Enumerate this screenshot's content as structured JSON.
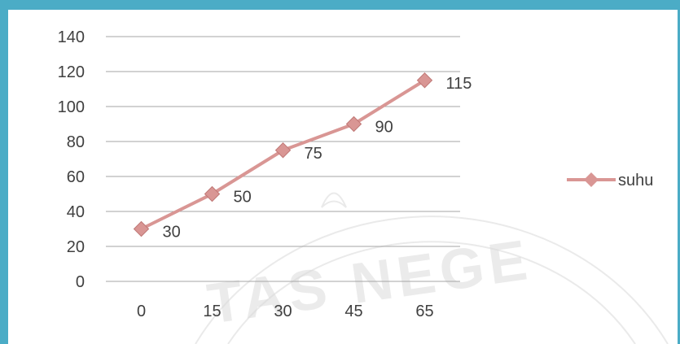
{
  "chart_data": {
    "type": "line",
    "categories": [
      "0",
      "15",
      "30",
      "45",
      "65"
    ],
    "series": [
      {
        "name": "suhu",
        "values": [
          30,
          50,
          75,
          90,
          115
        ],
        "color": "#d99694",
        "marker": "diamond"
      }
    ],
    "data_labels": [
      "30",
      "50",
      "75",
      "90",
      "115"
    ],
    "y_ticks": [
      "0",
      "20",
      "40",
      "60",
      "80",
      "100",
      "120",
      "140"
    ],
    "ylim": [
      0,
      140
    ],
    "grid": "horizontal",
    "legend": {
      "placement": "right"
    }
  },
  "frame": {
    "accent_color": "#4bacc6"
  },
  "watermark": {
    "kind": "university-seal",
    "text": "TAS NEGE"
  }
}
